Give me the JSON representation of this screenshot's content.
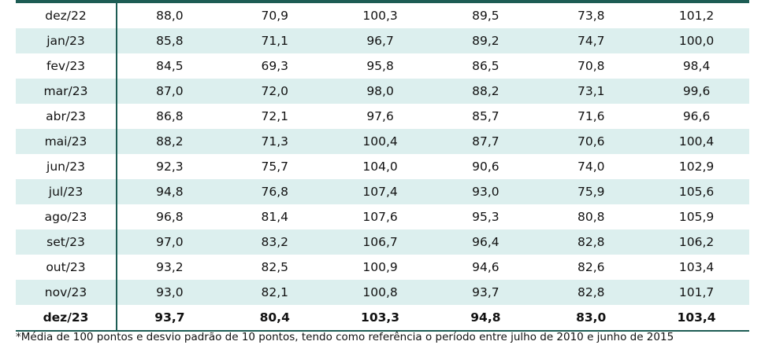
{
  "table": {
    "rows": [
      {
        "month": "dez/22",
        "values": [
          "88,0",
          "70,9",
          "100,3",
          "89,5",
          "73,8",
          "101,2"
        ]
      },
      {
        "month": "jan/23",
        "values": [
          "85,8",
          "71,1",
          "96,7",
          "89,2",
          "74,7",
          "100,0"
        ]
      },
      {
        "month": "fev/23",
        "values": [
          "84,5",
          "69,3",
          "95,8",
          "86,5",
          "70,8",
          "98,4"
        ]
      },
      {
        "month": "mar/23",
        "values": [
          "87,0",
          "72,0",
          "98,0",
          "88,2",
          "73,1",
          "99,6"
        ]
      },
      {
        "month": "abr/23",
        "values": [
          "86,8",
          "72,1",
          "97,6",
          "85,7",
          "71,6",
          "96,6"
        ]
      },
      {
        "month": "mai/23",
        "values": [
          "88,2",
          "71,3",
          "100,4",
          "87,7",
          "70,6",
          "100,4"
        ]
      },
      {
        "month": "jun/23",
        "values": [
          "92,3",
          "75,7",
          "104,0",
          "90,6",
          "74,0",
          "102,9"
        ]
      },
      {
        "month": "jul/23",
        "values": [
          "94,8",
          "76,8",
          "107,4",
          "93,0",
          "75,9",
          "105,6"
        ]
      },
      {
        "month": "ago/23",
        "values": [
          "96,8",
          "81,4",
          "107,6",
          "95,3",
          "80,8",
          "105,9"
        ]
      },
      {
        "month": "set/23",
        "values": [
          "97,0",
          "83,2",
          "106,7",
          "96,4",
          "82,8",
          "106,2"
        ]
      },
      {
        "month": "out/23",
        "values": [
          "93,2",
          "82,5",
          "100,9",
          "94,6",
          "82,6",
          "103,4"
        ]
      },
      {
        "month": "nov/23",
        "values": [
          "93,0",
          "82,1",
          "100,8",
          "93,7",
          "82,8",
          "101,7"
        ]
      },
      {
        "month": "dez/23",
        "values": [
          "93,7",
          "80,4",
          "103,3",
          "94,8",
          "83,0",
          "103,4"
        ]
      }
    ]
  },
  "footnote": "*Média de 100 pontos e desvio padrão de 10 pontos, tendo como referência o período entre julho de 2010 e junho de 2015",
  "colors": {
    "accent": "#1d5c54",
    "stripe": "#dcefee"
  }
}
